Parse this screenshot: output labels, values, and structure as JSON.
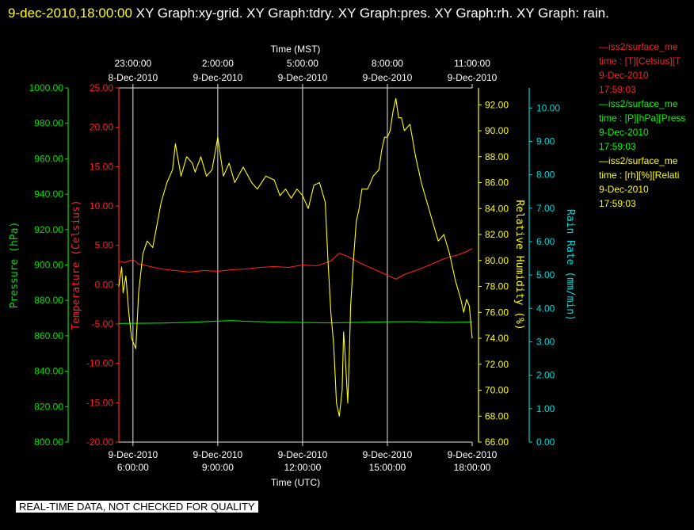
{
  "header": {
    "date": "9-dec-2010,18:00:00",
    "rest": "  XY Graph:xy-grid.  XY Graph:tdry.  XY Graph:pres.  XY Graph:rh.  XY Graph: rain."
  },
  "legend": [
    {
      "line1": "—iss2/surface_me",
      "line2": "time : [T][Celsius][T",
      "line3": "9-Dec-2010",
      "line4": "17:59:03",
      "color": "#ff2020"
    },
    {
      "line1": "—iss2/surface_me",
      "line2": "time : [P][hPa][Press",
      "line3": "9-Dec-2010",
      "line4": "17:59:03",
      "color": "#00ff00"
    },
    {
      "line1": "—iss2/surface_me",
      "line2": "time : [rh][%][Relati",
      "line3": "9-Dec-2010",
      "line4": "17:59:03",
      "color": "#ffff00"
    }
  ],
  "disclaimer": "REAL-TIME DATA, NOT CHECKED FOR QUALITY",
  "chart_data": {
    "type": "line",
    "xlabel_bottom": "Time (UTC)",
    "xlabel_top": "Time (MST)",
    "x_range_utc_hours": [
      5.5,
      18.0
    ],
    "bottom_ticks": [
      {
        "h": 6,
        "date": "9-Dec-2010",
        "time": "6:00:00"
      },
      {
        "h": 9,
        "date": "9-Dec-2010",
        "time": "9:00:00"
      },
      {
        "h": 12,
        "date": "9-Dec-2010",
        "time": "12:00:00"
      },
      {
        "h": 15,
        "date": "9-Dec-2010",
        "time": "15:00:00"
      },
      {
        "h": 18,
        "date": "9-Dec-2010",
        "time": "18:00:00"
      }
    ],
    "top_ticks": [
      {
        "h": 6,
        "date": "8-Dec-2010",
        "time": "23:00:00"
      },
      {
        "h": 9,
        "date": "9-Dec-2010",
        "time": "2:00:00"
      },
      {
        "h": 12,
        "date": "9-Dec-2010",
        "time": "5:00:00"
      },
      {
        "h": 15,
        "date": "9-Dec-2010",
        "time": "8:00:00"
      },
      {
        "h": 18,
        "date": "9-Dec-2010",
        "time": "11:00:00"
      }
    ],
    "grid": true,
    "axes": {
      "pressure": {
        "label": "Pressure (hPa)",
        "color": "#00e000",
        "range": [
          800,
          1000
        ],
        "ticks": [
          "800.00",
          "820.00",
          "840.00",
          "860.00",
          "880.00",
          "900.00",
          "920.00",
          "940.00",
          "960.00",
          "980.00",
          "1000.00"
        ]
      },
      "temperature": {
        "label": "Temperature (Celsius)",
        "color": "#ff2020",
        "range": [
          -20,
          25
        ],
        "ticks": [
          "-20.00",
          "-15.00",
          "-10.00",
          "-5.00",
          "0.00",
          "5.00",
          "10.00",
          "15.00",
          "20.00",
          "25.00"
        ]
      },
      "humidity": {
        "label": "Relative Humidity (%)",
        "color": "#ffff00",
        "range": [
          66,
          93.3
        ],
        "ticks": [
          "66.00",
          "68.00",
          "70.00",
          "72.00",
          "74.00",
          "76.00",
          "78.00",
          "80.00",
          "82.00",
          "84.00",
          "86.00",
          "88.00",
          "90.00",
          "92.00"
        ]
      },
      "rain": {
        "label": "Rain Rate (mm/min)",
        "color": "#00d8d8",
        "range": [
          0,
          10.6
        ],
        "ticks": [
          "0.00",
          "1.00",
          "2.00",
          "3.00",
          "4.00",
          "5.00",
          "6.00",
          "7.00",
          "8.00",
          "9.00",
          "10.00"
        ]
      }
    },
    "series": [
      {
        "name": "T",
        "axis": "temperature",
        "color": "#ff2020",
        "x": [
          5.5,
          5.7,
          6.0,
          6.2,
          6.5,
          7.0,
          7.5,
          8.0,
          8.5,
          9.0,
          9.5,
          10.0,
          10.5,
          11.0,
          11.5,
          12.0,
          12.5,
          13.0,
          13.3,
          13.6,
          14.0,
          14.5,
          15.0,
          15.3,
          15.6,
          16.0,
          16.5,
          17.0,
          17.5,
          17.8,
          18.0
        ],
        "y": [
          3.0,
          2.8,
          3.2,
          2.6,
          2.4,
          2.0,
          1.8,
          1.6,
          1.8,
          1.7,
          1.9,
          2.0,
          2.2,
          2.3,
          2.2,
          2.5,
          2.4,
          3.0,
          4.0,
          3.6,
          2.8,
          2.0,
          1.2,
          0.7,
          1.3,
          1.8,
          2.5,
          3.3,
          3.8,
          4.2,
          4.6
        ]
      },
      {
        "name": "P",
        "axis": "pressure",
        "color": "#00e000",
        "x": [
          5.5,
          7.0,
          8.0,
          9.0,
          9.5,
          10.0,
          11.0,
          12.0,
          13.0,
          14.0,
          15.0,
          16.0,
          17.0,
          18.0
        ],
        "y": [
          867.0,
          867.2,
          867.6,
          868.3,
          868.6,
          868.2,
          867.8,
          867.5,
          867.3,
          867.6,
          867.9,
          868.0,
          867.6,
          867.8
        ]
      },
      {
        "name": "rh",
        "axis": "humidity",
        "color": "#ffff00",
        "x": [
          5.5,
          5.6,
          5.65,
          5.75,
          5.85,
          5.95,
          6.1,
          6.2,
          6.35,
          6.5,
          6.7,
          7.0,
          7.2,
          7.4,
          7.5,
          7.7,
          7.9,
          8.1,
          8.2,
          8.4,
          8.6,
          8.8,
          9.0,
          9.2,
          9.4,
          9.6,
          9.9,
          10.2,
          10.4,
          10.7,
          11.0,
          11.2,
          11.4,
          11.6,
          11.8,
          12.0,
          12.2,
          12.4,
          12.6,
          12.8,
          12.9,
          13.0,
          13.1,
          13.2,
          13.3,
          13.4,
          13.45,
          13.5,
          13.55,
          13.6,
          13.65,
          13.7,
          13.8,
          13.9,
          14.0,
          14.1,
          14.3,
          14.5,
          14.7,
          14.8,
          14.9,
          15.0,
          15.1,
          15.2,
          15.3,
          15.4,
          15.5,
          15.6,
          15.8,
          16.0,
          16.2,
          16.4,
          16.6,
          16.8,
          17.0,
          17.2,
          17.4,
          17.6,
          17.7,
          17.8,
          17.9,
          18.0
        ],
        "y": [
          78.0,
          79.5,
          77.5,
          78.8,
          76.0,
          74.0,
          73.2,
          77.5,
          80.5,
          81.5,
          81.0,
          84.5,
          86.0,
          87.0,
          89.0,
          86.5,
          88.0,
          87.5,
          86.8,
          88.0,
          86.5,
          87.0,
          89.5,
          86.5,
          87.5,
          86.0,
          87.2,
          86.0,
          85.5,
          86.5,
          86.2,
          85.0,
          85.5,
          84.8,
          85.5,
          85.0,
          84.0,
          85.8,
          86.0,
          84.5,
          80.0,
          76.0,
          73.5,
          69.0,
          68.0,
          70.0,
          74.5,
          73.0,
          71.0,
          69.0,
          72.5,
          76.5,
          80.0,
          83.0,
          84.0,
          85.5,
          85.5,
          86.5,
          87.0,
          88.5,
          89.5,
          89.5,
          90.0,
          91.5,
          92.5,
          91.0,
          91.0,
          90.0,
          90.5,
          88.0,
          86.0,
          84.5,
          83.0,
          81.5,
          82.0,
          80.5,
          78.5,
          77.0,
          76.0,
          77.0,
          76.5,
          74.0
        ]
      }
    ]
  }
}
